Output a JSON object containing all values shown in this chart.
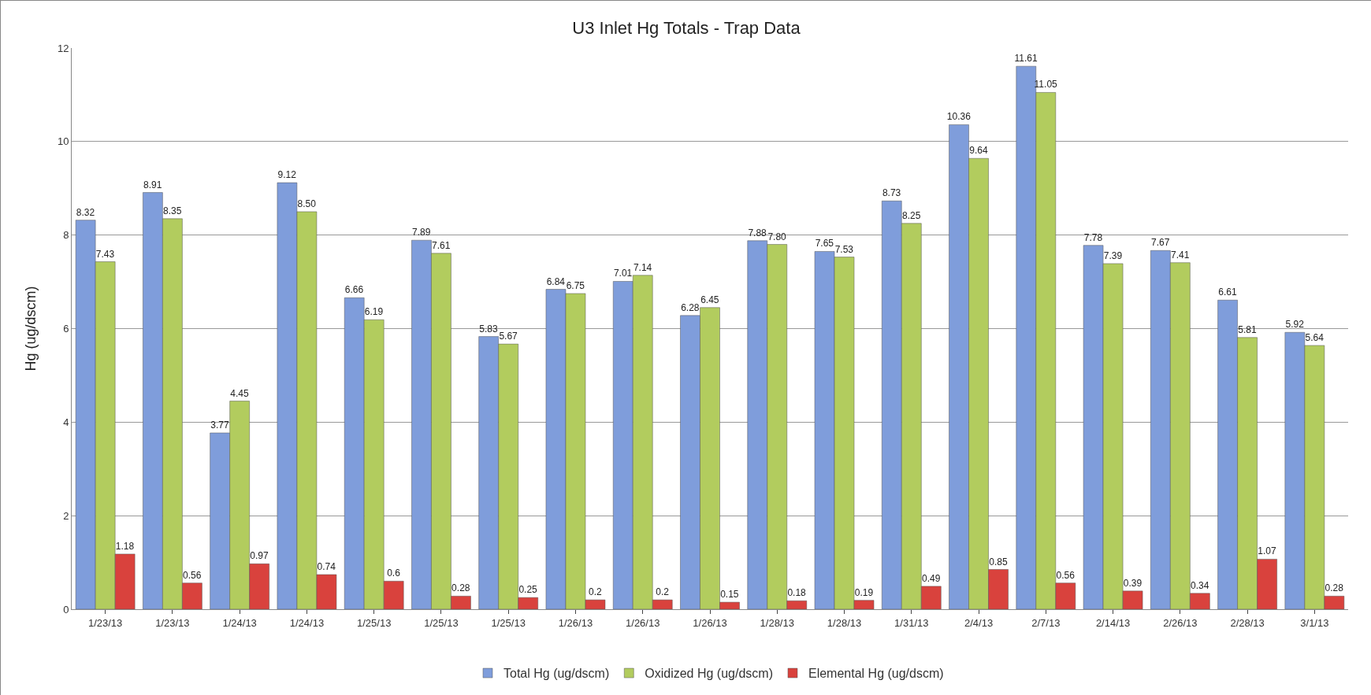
{
  "chart_data": {
    "type": "bar",
    "title": "U3 Inlet Hg Totals - Trap Data",
    "ylabel": "Hg (ug/dscm)",
    "categories": [
      "1/23/13",
      "1/23/13",
      "1/24/13",
      "1/24/13",
      "1/25/13",
      "1/25/13",
      "1/25/13",
      "1/26/13",
      "1/26/13",
      "1/26/13",
      "1/28/13",
      "1/28/13",
      "1/31/13",
      "2/4/13",
      "2/7/13",
      "2/14/13",
      "2/26/13",
      "2/28/13",
      "3/1/13"
    ],
    "series": [
      {
        "name": "Total Hg (ug/dscm)",
        "color": "#7f9ddb",
        "values": [
          8.32,
          8.91,
          3.77,
          9.12,
          6.66,
          7.89,
          5.83,
          6.84,
          7.01,
          6.28,
          7.88,
          7.65,
          8.73,
          10.36,
          11.61,
          7.78,
          7.67,
          6.61,
          5.92
        ],
        "value_labels": [
          "8.32",
          "8.91",
          "3.77",
          "9.12",
          "6.66",
          "7.89",
          "5.83",
          "6.84",
          "7.01",
          "6.28",
          "7.88",
          "7.65",
          "8.73",
          "10.36",
          "11.61",
          "7.78",
          "7.67",
          "6.61",
          "5.92"
        ]
      },
      {
        "name": "Oxidized Hg (ug/dscm)",
        "color": "#b2cc5e",
        "values": [
          7.43,
          8.35,
          4.45,
          8.5,
          6.19,
          7.61,
          5.67,
          6.75,
          7.14,
          6.45,
          7.8,
          7.53,
          8.25,
          9.64,
          11.05,
          7.39,
          7.41,
          5.81,
          5.64
        ],
        "value_labels": [
          "7.43",
          "8.35",
          "4.45",
          "8.50",
          "6.19",
          "7.61",
          "5.67",
          "6.75",
          "7.14",
          "6.45",
          "7.80",
          "7.53",
          "8.25",
          "9.64",
          "11.05",
          "7.39",
          "7.41",
          "5.81",
          "5.64"
        ]
      },
      {
        "name": "Elemental Hg (ug/dscm)",
        "color": "#d9423d",
        "values": [
          1.18,
          0.56,
          0.97,
          0.74,
          0.6,
          0.28,
          0.25,
          0.2,
          0.2,
          0.15,
          0.18,
          0.19,
          0.49,
          0.85,
          0.56,
          0.39,
          0.34,
          1.07,
          0.28
        ],
        "value_labels": [
          "1.18",
          "0.56",
          "0.97",
          "0.74",
          "0.6",
          "0.28",
          "0.25",
          "0.2",
          "0.2",
          "0.15",
          "0.18",
          "0.19",
          "0.49",
          "0.85",
          "0.56",
          "0.39",
          "0.34",
          "1.07",
          "0.28"
        ]
      }
    ],
    "ylim": [
      0,
      12
    ],
    "yticks": [
      0,
      2,
      4,
      6,
      8,
      10,
      12
    ],
    "grid": "y",
    "legend": "bottom"
  }
}
